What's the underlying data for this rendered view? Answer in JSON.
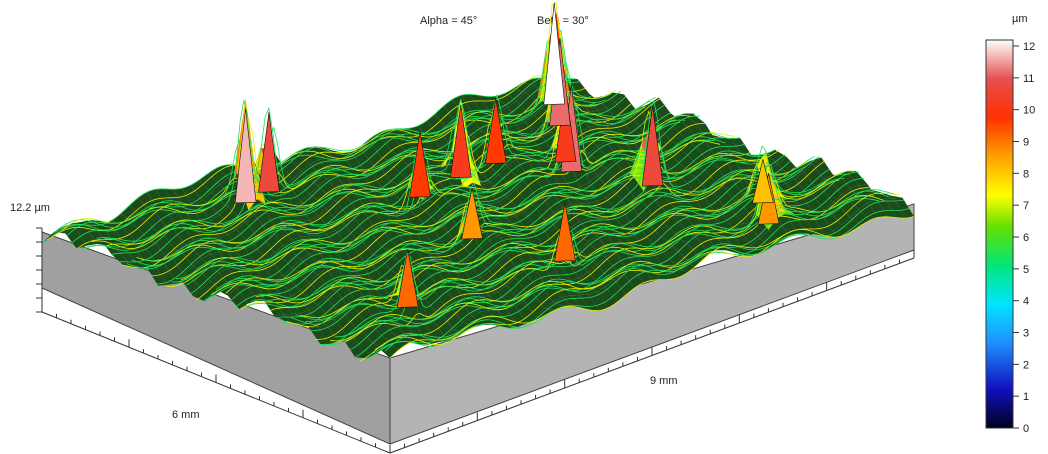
{
  "chart_data": {
    "type": "surface",
    "header": {
      "alpha_label": "Alpha = 45°",
      "beta_label": "Beta = 30°"
    },
    "axes": {
      "x_label": "6 mm",
      "y_label": "9 mm",
      "z_label": "12.2 µm",
      "x_range_mm": [
        0,
        6
      ],
      "y_range_mm": [
        0,
        9
      ],
      "z_range_um": [
        0,
        12.2
      ]
    },
    "colorbar": {
      "unit": "µm",
      "min": 0,
      "max": 12,
      "ticks": [
        "12",
        "11",
        "10",
        "9",
        "8",
        "7",
        "6",
        "5",
        "4",
        "3",
        "2",
        "1",
        "0"
      ],
      "stops": [
        "#000020",
        "#1010c0",
        "#1e90ff",
        "#00e5ff",
        "#00e676",
        "#66e000",
        "#ffff00",
        "#ffa000",
        "#ff3000",
        "#e65050",
        "#ffffff"
      ]
    },
    "surface": {
      "base_height_um": 5,
      "roughness_um": 1
    },
    "peaks": [
      {
        "x_mm": 0.6,
        "y_mm": 7.1,
        "height_um": 8.5
      },
      {
        "x_mm": 1.2,
        "y_mm": 7.6,
        "height_um": 8.0
      },
      {
        "x_mm": 2.5,
        "y_mm": 7.0,
        "height_um": 10.5
      },
      {
        "x_mm": 3.5,
        "y_mm": 6.6,
        "height_um": 11.0
      },
      {
        "x_mm": 3.8,
        "y_mm": 6.8,
        "height_um": 10.0
      },
      {
        "x_mm": 4.3,
        "y_mm": 6.1,
        "height_um": 9.5
      },
      {
        "x_mm": 5.2,
        "y_mm": 2.7,
        "height_um": 11.5
      },
      {
        "x_mm": 5.3,
        "y_mm": 3.2,
        "height_um": 10.5
      },
      {
        "x_mm": 4.0,
        "y_mm": 4.5,
        "height_um": 9.5
      },
      {
        "x_mm": 4.2,
        "y_mm": 5.4,
        "height_um": 10.0
      },
      {
        "x_mm": 1.2,
        "y_mm": 4.2,
        "height_um": 9.0
      },
      {
        "x_mm": 2.5,
        "y_mm": 3.9,
        "height_um": 8.5
      },
      {
        "x_mm": 1.2,
        "y_mm": 1.5,
        "height_um": 9.0
      },
      {
        "x_mm": 4.8,
        "y_mm": 7.7,
        "height_um": 11.0
      },
      {
        "x_mm": 5.4,
        "y_mm": 8.2,
        "height_um": 12.0
      }
    ]
  }
}
